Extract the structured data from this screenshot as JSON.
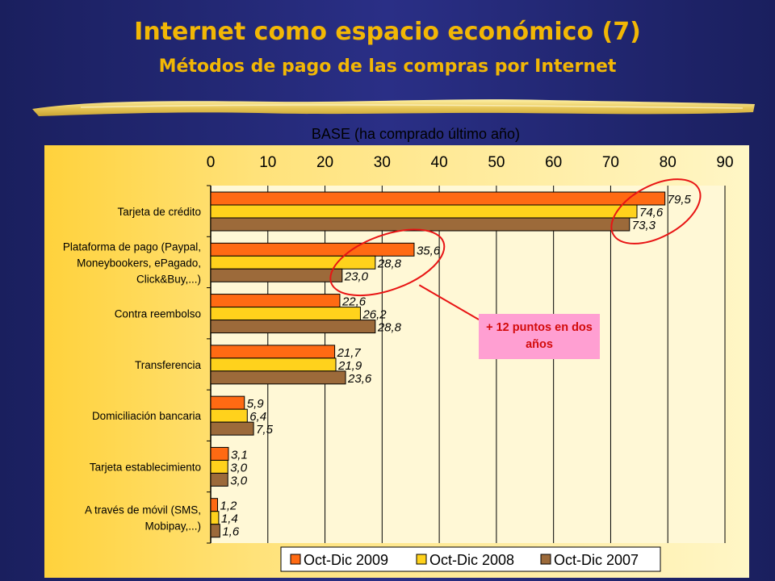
{
  "header": {
    "title": "Internet como espacio económico (7)",
    "subtitle": "Métodos de pago de las compras por Internet"
  },
  "base_label": "BASE (ha comprado último año)",
  "callout": {
    "text": "+ 12 puntos en dos años"
  },
  "colors": {
    "oct_dic_2009": "#ff6a13",
    "oct_dic_2008": "#ffd21c",
    "oct_dic_2007": "#9c6a3a",
    "callout_bg": "#ff9fd2",
    "callout_text": "#d30a0a",
    "circle": "#e81414",
    "title": "#f2b705"
  },
  "chart_data": {
    "type": "bar",
    "orientation": "horizontal",
    "xlim": [
      0,
      90
    ],
    "xticks": [
      "0",
      "10",
      "20",
      "30",
      "40",
      "50",
      "60",
      "70",
      "80",
      "90"
    ],
    "grid": true,
    "legend_position": "bottom",
    "categories": [
      [
        "Tarjeta de crédito"
      ],
      [
        "Plataforma de pago (Paypal,",
        "Moneybookers, ePagado,",
        "Click&Buy,...)"
      ],
      [
        "Contra reembolso"
      ],
      [
        "Transferencia"
      ],
      [
        "Domiciliación bancaria"
      ],
      [
        "Tarjeta establecimiento"
      ],
      [
        "A través de móvil (SMS,",
        "Mobipay,...)"
      ]
    ],
    "series": [
      {
        "name": "Oct-Dic 2009",
        "values": [
          79.5,
          35.6,
          22.6,
          21.7,
          5.9,
          3.1,
          1.2
        ],
        "labels": [
          "79,5",
          "35,6",
          "22,6",
          "21,7",
          "5,9",
          "3,1",
          "1,2"
        ]
      },
      {
        "name": "Oct-Dic 2008",
        "values": [
          74.6,
          28.8,
          26.2,
          21.9,
          6.4,
          3.0,
          1.4
        ],
        "labels": [
          "74,6",
          "28,8",
          "26,2",
          "21,9",
          "6,4",
          "3,0",
          "1,4"
        ]
      },
      {
        "name": "Oct-Dic 2007",
        "values": [
          73.3,
          23.0,
          28.8,
          23.6,
          7.5,
          3.0,
          1.6
        ],
        "labels": [
          "73,3",
          "23,0",
          "28,8",
          "23,6",
          "7,5",
          "3,0",
          "1,6"
        ]
      }
    ]
  }
}
